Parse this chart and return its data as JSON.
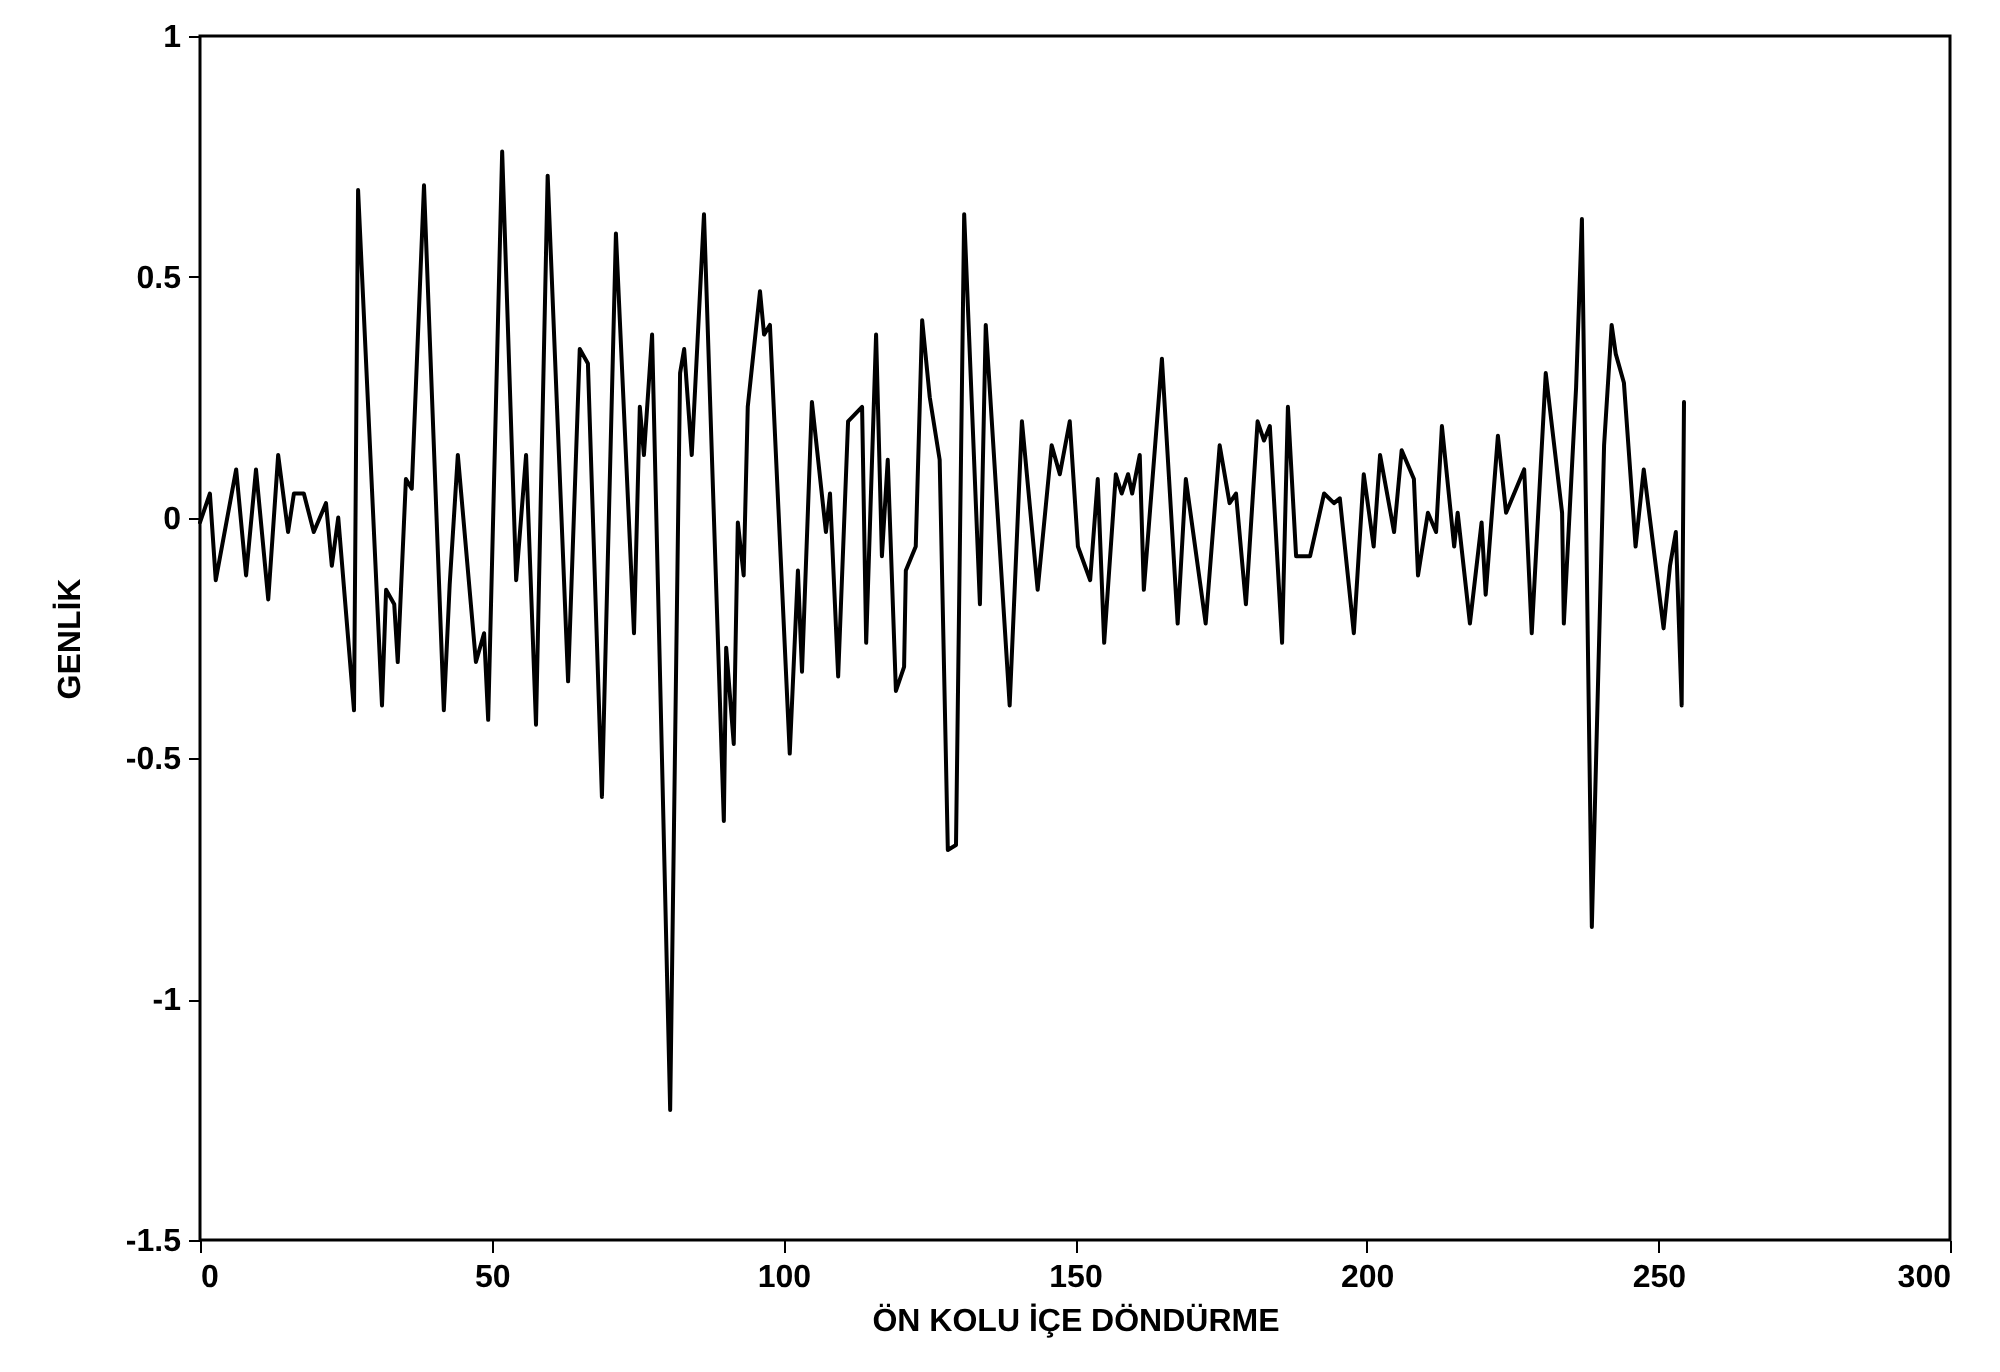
{
  "chart_data": {
    "type": "line",
    "xlabel": "ÖN KOLU İÇE DÖNDÜRME",
    "ylabel": "GENLİK",
    "xlim": [
      0,
      300
    ],
    "ylim": [
      -1.5,
      1
    ],
    "xticks": [
      0,
      50,
      100,
      150,
      200,
      250,
      300
    ],
    "yticks": [
      -1.5,
      -1,
      -0.5,
      0,
      0.5,
      1
    ],
    "x": [
      0,
      1.7,
      2.7,
      6.2,
      7.9,
      9.6,
      11.7,
      13.4,
      15.1,
      16.1,
      17.8,
      19.5,
      21.6,
      22.6,
      23.7,
      26.4,
      27.1,
      31.2,
      31.9,
      33.3,
      33.9,
      35.3,
      36.3,
      38.4,
      41.8,
      42.8,
      44.2,
      47.3,
      48.7,
      49.4,
      51.8,
      54.2,
      55.9,
      57.6,
      59.6,
      63.1,
      65.1,
      66.5,
      68.9,
      71.3,
      74.4,
      75.4,
      76.1,
      77.5,
      80.6,
      82.3,
      83.0,
      84.3,
      86.4,
      89.8,
      90.2,
      91.5,
      92.2,
      93.2,
      93.9,
      96.0,
      96.7,
      97.7,
      101.1,
      102.5,
      103.2,
      104.9,
      107.3,
      108.0,
      109.4,
      111.1,
      113.5,
      114.2,
      115.9,
      116.9,
      117.9,
      119.3,
      120.7,
      121.0,
      122.7,
      123.8,
      125.1,
      126.8,
      128.2,
      129.6,
      131.0,
      133.7,
      134.7,
      138.8,
      140.9,
      143.6,
      146.0,
      147.4,
      149.1,
      150.5,
      152.6,
      153.9,
      155.0,
      157.0,
      158.0,
      159.1,
      159.8,
      161.1,
      161.8,
      164.9,
      167.6,
      169.0,
      172.4,
      174.8,
      176.5,
      177.6,
      179.3,
      181.3,
      182.4,
      183.4,
      185.5,
      186.5,
      187.9,
      190.3,
      192.7,
      194.4,
      195.4,
      197.8,
      199.5,
      201.2,
      202.3,
      204.7,
      206.0,
      208.1,
      208.8,
      210.5,
      211.9,
      212.9,
      215.0,
      215.6,
      217.7,
      219.7,
      220.4,
      222.5,
      223.9,
      227.0,
      228.3,
      230.7,
      233.5,
      233.8,
      235.9,
      236.9,
      238.6,
      240.7,
      242.0,
      242.7,
      244.1,
      246.1,
      247.5,
      250.9,
      252.0,
      253.0,
      254.0,
      254.4
    ],
    "series": [
      {
        "color": "#000000",
        "values": [
          -0.01,
          0.05,
          -0.13,
          0.1,
          -0.12,
          0.1,
          -0.17,
          0.13,
          -0.03,
          0.05,
          0.05,
          -0.03,
          0.03,
          -0.1,
          0.0,
          -0.4,
          0.68,
          -0.39,
          -0.15,
          -0.18,
          -0.3,
          0.08,
          0.06,
          0.69,
          -0.4,
          -0.14,
          0.13,
          -0.3,
          -0.24,
          -0.42,
          0.76,
          -0.13,
          0.13,
          -0.43,
          0.71,
          -0.34,
          0.35,
          0.32,
          -0.58,
          0.59,
          -0.24,
          0.23,
          0.13,
          0.38,
          -1.23,
          0.3,
          0.35,
          0.13,
          0.63,
          -0.63,
          -0.27,
          -0.47,
          -0.01,
          -0.12,
          0.23,
          0.47,
          0.38,
          0.4,
          -0.49,
          -0.11,
          -0.32,
          0.24,
          -0.03,
          0.05,
          -0.33,
          0.2,
          0.23,
          -0.26,
          0.38,
          -0.08,
          0.12,
          -0.36,
          -0.31,
          -0.11,
          -0.06,
          0.41,
          0.25,
          0.12,
          -0.69,
          -0.68,
          0.63,
          -0.18,
          0.4,
          -0.39,
          0.2,
          -0.15,
          0.15,
          0.09,
          0.2,
          -0.06,
          -0.13,
          0.08,
          -0.26,
          0.09,
          0.05,
          0.09,
          0.05,
          0.13,
          -0.15,
          0.33,
          -0.22,
          0.08,
          -0.22,
          0.15,
          0.03,
          0.05,
          -0.18,
          0.2,
          0.16,
          0.19,
          -0.26,
          0.23,
          -0.08,
          -0.08,
          0.05,
          0.03,
          0.04,
          -0.24,
          0.09,
          -0.06,
          0.13,
          -0.03,
          0.14,
          0.08,
          -0.12,
          0.01,
          -0.03,
          0.19,
          -0.06,
          0.01,
          -0.22,
          -0.01,
          -0.16,
          0.17,
          0.01,
          0.1,
          -0.24,
          0.3,
          0.01,
          -0.22,
          0.27,
          0.62,
          -0.85,
          0.15,
          0.4,
          0.34,
          0.28,
          -0.06,
          0.1,
          -0.23,
          -0.1,
          -0.03,
          -0.39,
          0.24
        ]
      }
    ]
  }
}
